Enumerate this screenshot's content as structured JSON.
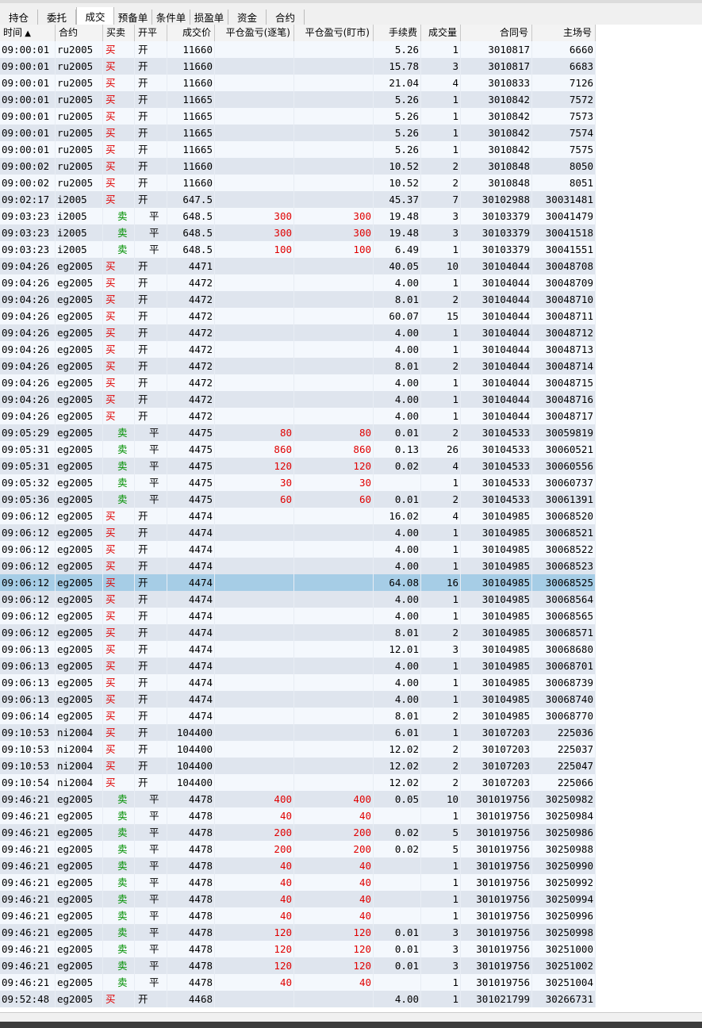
{
  "tabs": [
    "持仓",
    "委托",
    "成交",
    "预备单",
    "条件单",
    "损盈单",
    "资金",
    "合约"
  ],
  "table": {
    "headers": [
      "时间",
      "合约",
      "买卖",
      "开平",
      "成交价",
      "平仓盈亏(逐笔)",
      "平仓盈亏(盯市)",
      "手续费",
      "成交量",
      "合同号",
      "主场号"
    ],
    "rows": [
      [
        "09:00:01",
        "ru2005",
        "买",
        "开",
        "11660",
        null,
        null,
        "5.26",
        "1",
        "3010817",
        "6660"
      ],
      [
        "09:00:01",
        "ru2005",
        "买",
        "开",
        "11660",
        null,
        null,
        "15.78",
        "3",
        "3010817",
        "6683"
      ],
      [
        "09:00:01",
        "ru2005",
        "买",
        "开",
        "11660",
        null,
        null,
        "21.04",
        "4",
        "3010833",
        "7126"
      ],
      [
        "09:00:01",
        "ru2005",
        "买",
        "开",
        "11665",
        null,
        null,
        "5.26",
        "1",
        "3010842",
        "7572"
      ],
      [
        "09:00:01",
        "ru2005",
        "买",
        "开",
        "11665",
        null,
        null,
        "5.26",
        "1",
        "3010842",
        "7573"
      ],
      [
        "09:00:01",
        "ru2005",
        "买",
        "开",
        "11665",
        null,
        null,
        "5.26",
        "1",
        "3010842",
        "7574"
      ],
      [
        "09:00:01",
        "ru2005",
        "买",
        "开",
        "11665",
        null,
        null,
        "5.26",
        "1",
        "3010842",
        "7575"
      ],
      [
        "09:00:02",
        "ru2005",
        "买",
        "开",
        "11660",
        null,
        null,
        "10.52",
        "2",
        "3010848",
        "8050"
      ],
      [
        "09:00:02",
        "ru2005",
        "买",
        "开",
        "11660",
        null,
        null,
        "10.52",
        "2",
        "3010848",
        "8051"
      ],
      [
        "09:02:17",
        "i2005",
        "买",
        "开",
        "647.5",
        null,
        null,
        "45.37",
        "7",
        "30102988",
        "30031481"
      ],
      [
        "09:03:23",
        "i2005",
        "卖",
        "平",
        "648.5",
        "300",
        "300",
        "19.48",
        "3",
        "30103379",
        "30041479"
      ],
      [
        "09:03:23",
        "i2005",
        "卖",
        "平",
        "648.5",
        "300",
        "300",
        "19.48",
        "3",
        "30103379",
        "30041518"
      ],
      [
        "09:03:23",
        "i2005",
        "卖",
        "平",
        "648.5",
        "100",
        "100",
        "6.49",
        "1",
        "30103379",
        "30041551"
      ],
      [
        "09:04:26",
        "eg2005",
        "买",
        "开",
        "4471",
        null,
        null,
        "40.05",
        "10",
        "30104044",
        "30048708"
      ],
      [
        "09:04:26",
        "eg2005",
        "买",
        "开",
        "4472",
        null,
        null,
        "4.00",
        "1",
        "30104044",
        "30048709"
      ],
      [
        "09:04:26",
        "eg2005",
        "买",
        "开",
        "4472",
        null,
        null,
        "8.01",
        "2",
        "30104044",
        "30048710"
      ],
      [
        "09:04:26",
        "eg2005",
        "买",
        "开",
        "4472",
        null,
        null,
        "60.07",
        "15",
        "30104044",
        "30048711"
      ],
      [
        "09:04:26",
        "eg2005",
        "买",
        "开",
        "4472",
        null,
        null,
        "4.00",
        "1",
        "30104044",
        "30048712"
      ],
      [
        "09:04:26",
        "eg2005",
        "买",
        "开",
        "4472",
        null,
        null,
        "4.00",
        "1",
        "30104044",
        "30048713"
      ],
      [
        "09:04:26",
        "eg2005",
        "买",
        "开",
        "4472",
        null,
        null,
        "8.01",
        "2",
        "30104044",
        "30048714"
      ],
      [
        "09:04:26",
        "eg2005",
        "买",
        "开",
        "4472",
        null,
        null,
        "4.00",
        "1",
        "30104044",
        "30048715"
      ],
      [
        "09:04:26",
        "eg2005",
        "买",
        "开",
        "4472",
        null,
        null,
        "4.00",
        "1",
        "30104044",
        "30048716"
      ],
      [
        "09:04:26",
        "eg2005",
        "买",
        "开",
        "4472",
        null,
        null,
        "4.00",
        "1",
        "30104044",
        "30048717"
      ],
      [
        "09:05:29",
        "eg2005",
        "卖",
        "平",
        "4475",
        "80",
        "80",
        "0.01",
        "2",
        "30104533",
        "30059819"
      ],
      [
        "09:05:31",
        "eg2005",
        "卖",
        "平",
        "4475",
        "860",
        "860",
        "0.13",
        "26",
        "30104533",
        "30060521"
      ],
      [
        "09:05:31",
        "eg2005",
        "卖",
        "平",
        "4475",
        "120",
        "120",
        "0.02",
        "4",
        "30104533",
        "30060556"
      ],
      [
        "09:05:32",
        "eg2005",
        "卖",
        "平",
        "4475",
        "30",
        "30",
        null,
        "1",
        "30104533",
        "30060737"
      ],
      [
        "09:05:36",
        "eg2005",
        "卖",
        "平",
        "4475",
        "60",
        "60",
        "0.01",
        "2",
        "30104533",
        "30061391"
      ],
      [
        "09:06:12",
        "eg2005",
        "买",
        "开",
        "4474",
        null,
        null,
        "16.02",
        "4",
        "30104985",
        "30068520"
      ],
      [
        "09:06:12",
        "eg2005",
        "买",
        "开",
        "4474",
        null,
        null,
        "4.00",
        "1",
        "30104985",
        "30068521"
      ],
      [
        "09:06:12",
        "eg2005",
        "买",
        "开",
        "4474",
        null,
        null,
        "4.00",
        "1",
        "30104985",
        "30068522"
      ],
      [
        "09:06:12",
        "eg2005",
        "买",
        "开",
        "4474",
        null,
        null,
        "4.00",
        "1",
        "30104985",
        "30068523"
      ],
      [
        "09:06:12",
        "eg2005",
        "买",
        "开",
        "4474",
        null,
        null,
        "64.08",
        "16",
        "30104985",
        "30068525"
      ],
      [
        "09:06:12",
        "eg2005",
        "买",
        "开",
        "4474",
        null,
        null,
        "4.00",
        "1",
        "30104985",
        "30068564"
      ],
      [
        "09:06:12",
        "eg2005",
        "买",
        "开",
        "4474",
        null,
        null,
        "4.00",
        "1",
        "30104985",
        "30068565"
      ],
      [
        "09:06:12",
        "eg2005",
        "买",
        "开",
        "4474",
        null,
        null,
        "8.01",
        "2",
        "30104985",
        "30068571"
      ],
      [
        "09:06:13",
        "eg2005",
        "买",
        "开",
        "4474",
        null,
        null,
        "12.01",
        "3",
        "30104985",
        "30068680"
      ],
      [
        "09:06:13",
        "eg2005",
        "买",
        "开",
        "4474",
        null,
        null,
        "4.00",
        "1",
        "30104985",
        "30068701"
      ],
      [
        "09:06:13",
        "eg2005",
        "买",
        "开",
        "4474",
        null,
        null,
        "4.00",
        "1",
        "30104985",
        "30068739"
      ],
      [
        "09:06:13",
        "eg2005",
        "买",
        "开",
        "4474",
        null,
        null,
        "4.00",
        "1",
        "30104985",
        "30068740"
      ],
      [
        "09:06:14",
        "eg2005",
        "买",
        "开",
        "4474",
        null,
        null,
        "8.01",
        "2",
        "30104985",
        "30068770"
      ],
      [
        "09:10:53",
        "ni2004",
        "买",
        "开",
        "104400",
        null,
        null,
        "6.01",
        "1",
        "30107203",
        "225036"
      ],
      [
        "09:10:53",
        "ni2004",
        "买",
        "开",
        "104400",
        null,
        null,
        "12.02",
        "2",
        "30107203",
        "225037"
      ],
      [
        "09:10:53",
        "ni2004",
        "买",
        "开",
        "104400",
        null,
        null,
        "12.02",
        "2",
        "30107203",
        "225047"
      ],
      [
        "09:10:54",
        "ni2004",
        "买",
        "开",
        "104400",
        null,
        null,
        "12.02",
        "2",
        "30107203",
        "225066"
      ],
      [
        "09:46:21",
        "eg2005",
        "卖",
        "平",
        "4478",
        "400",
        "400",
        "0.05",
        "10",
        "301019756",
        "30250982"
      ],
      [
        "09:46:21",
        "eg2005",
        "卖",
        "平",
        "4478",
        "40",
        "40",
        null,
        "1",
        "301019756",
        "30250984"
      ],
      [
        "09:46:21",
        "eg2005",
        "卖",
        "平",
        "4478",
        "200",
        "200",
        "0.02",
        "5",
        "301019756",
        "30250986"
      ],
      [
        "09:46:21",
        "eg2005",
        "卖",
        "平",
        "4478",
        "200",
        "200",
        "0.02",
        "5",
        "301019756",
        "30250988"
      ],
      [
        "09:46:21",
        "eg2005",
        "卖",
        "平",
        "4478",
        "40",
        "40",
        null,
        "1",
        "301019756",
        "30250990"
      ],
      [
        "09:46:21",
        "eg2005",
        "卖",
        "平",
        "4478",
        "40",
        "40",
        null,
        "1",
        "301019756",
        "30250992"
      ],
      [
        "09:46:21",
        "eg2005",
        "卖",
        "平",
        "4478",
        "40",
        "40",
        null,
        "1",
        "301019756",
        "30250994"
      ],
      [
        "09:46:21",
        "eg2005",
        "卖",
        "平",
        "4478",
        "40",
        "40",
        null,
        "1",
        "301019756",
        "30250996"
      ],
      [
        "09:46:21",
        "eg2005",
        "卖",
        "平",
        "4478",
        "120",
        "120",
        "0.01",
        "3",
        "301019756",
        "30250998"
      ],
      [
        "09:46:21",
        "eg2005",
        "卖",
        "平",
        "4478",
        "120",
        "120",
        "0.01",
        "3",
        "301019756",
        "30251000"
      ],
      [
        "09:46:21",
        "eg2005",
        "卖",
        "平",
        "4478",
        "120",
        "120",
        "0.01",
        "3",
        "301019756",
        "30251002"
      ],
      [
        "09:46:21",
        "eg2005",
        "卖",
        "平",
        "4478",
        "40",
        "40",
        null,
        "1",
        "301019756",
        "30251004"
      ],
      [
        "09:52:48",
        "eg2005",
        "买",
        "开",
        "4468",
        null,
        null,
        "4.00",
        "1",
        "301021799",
        "30266731"
      ]
    ]
  }
}
